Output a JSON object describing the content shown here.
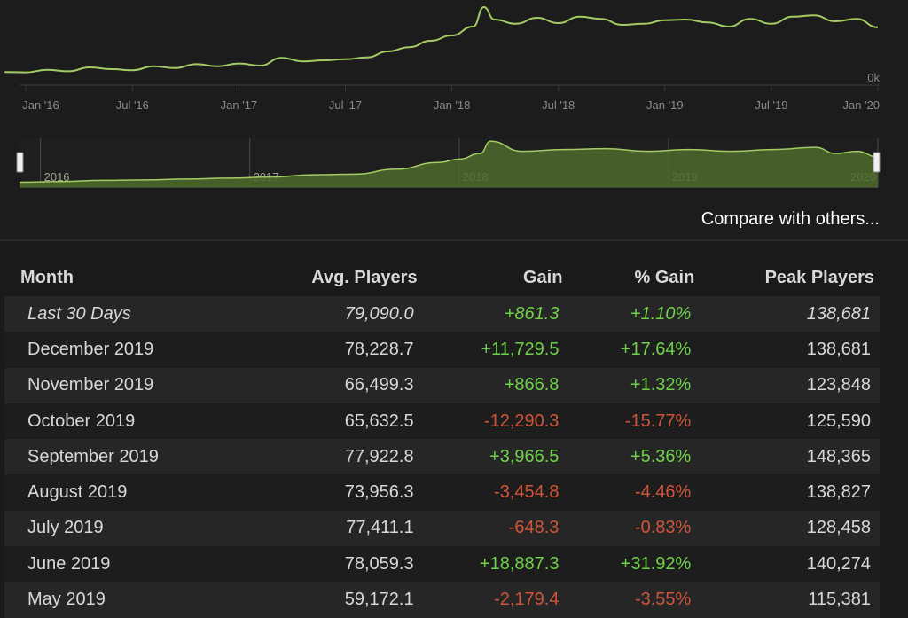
{
  "colors": {
    "line": "#a4cc64",
    "nav_fill": "#4e6a2c",
    "positive": "#6fd14a",
    "negative": "#d0543a"
  },
  "chart_data": [
    {
      "type": "line",
      "x_ticks": [
        "Jan '16",
        "Jul '16",
        "Jan '17",
        "Jul '17",
        "Jan '18",
        "Jul '18",
        "Jan '19",
        "Jul '19",
        "Jan '20"
      ],
      "y_ticks": [
        "0k"
      ],
      "ylim": [
        0,
        220000
      ],
      "grid": false,
      "series": [
        {
          "x": [
            2015.9,
            2016.0,
            2016.1,
            2016.2,
            2016.3,
            2016.4,
            2016.5,
            2016.6,
            2016.7,
            2016.8,
            2016.9,
            2017.0,
            2017.1,
            2017.2,
            2017.3,
            2017.4,
            2017.5,
            2017.6,
            2017.7,
            2017.8,
            2017.9,
            2018.0,
            2018.1,
            2018.15,
            2018.2,
            2018.3,
            2018.4,
            2018.5,
            2018.6,
            2018.7,
            2018.8,
            2018.9,
            2019.0,
            2019.1,
            2019.2,
            2019.3,
            2019.4,
            2019.5,
            2019.6,
            2019.7,
            2019.8,
            2019.9,
            2020.0
          ],
          "y": [
            22000,
            21000,
            28000,
            24000,
            35000,
            30000,
            27000,
            38000,
            33000,
            44000,
            38000,
            46000,
            40000,
            62000,
            52000,
            55000,
            58000,
            63000,
            80000,
            92000,
            110000,
            125000,
            150000,
            205000,
            170000,
            158000,
            175000,
            160000,
            178000,
            172000,
            155000,
            158000,
            168000,
            170000,
            162000,
            150000,
            172000,
            158000,
            178000,
            182000,
            165000,
            172000,
            148000
          ]
        }
      ]
    },
    {
      "type": "area",
      "x_ticks": [
        "2016",
        "2017",
        "2018",
        "2019",
        "2020"
      ],
      "series": [
        {
          "x": [
            2015.9,
            2016.1,
            2016.3,
            2016.5,
            2016.7,
            2016.9,
            2017.1,
            2017.3,
            2017.5,
            2017.7,
            2017.9,
            2018.0,
            2018.1,
            2018.15,
            2018.3,
            2018.5,
            2018.7,
            2018.9,
            2019.1,
            2019.3,
            2019.5,
            2019.7,
            2019.8,
            2019.9,
            2020.0
          ],
          "y": [
            22000,
            25000,
            30000,
            32000,
            36000,
            40000,
            45000,
            55000,
            58000,
            80000,
            110000,
            125000,
            150000,
            205000,
            160000,
            168000,
            172000,
            160000,
            168000,
            160000,
            168000,
            178000,
            150000,
            160000,
            135000
          ]
        }
      ]
    },
    {
      "type": "table",
      "headers": [
        "Month",
        "Avg. Players",
        "Gain",
        "% Gain",
        "Peak Players"
      ],
      "rows": [
        {
          "month": "Last 30 Days",
          "avg": "79,090.0",
          "gain": "+861.3",
          "pct": "+1.10%",
          "peak": "138,681",
          "sign": "pos",
          "italic": true
        },
        {
          "month": "December 2019",
          "avg": "78,228.7",
          "gain": "+11,729.5",
          "pct": "+17.64%",
          "peak": "138,681",
          "sign": "pos"
        },
        {
          "month": "November 2019",
          "avg": "66,499.3",
          "gain": "+866.8",
          "pct": "+1.32%",
          "peak": "123,848",
          "sign": "pos"
        },
        {
          "month": "October 2019",
          "avg": "65,632.5",
          "gain": "-12,290.3",
          "pct": "-15.77%",
          "peak": "125,590",
          "sign": "neg"
        },
        {
          "month": "September 2019",
          "avg": "77,922.8",
          "gain": "+3,966.5",
          "pct": "+5.36%",
          "peak": "148,365",
          "sign": "pos"
        },
        {
          "month": "August 2019",
          "avg": "73,956.3",
          "gain": "-3,454.8",
          "pct": "-4.46%",
          "peak": "138,827",
          "sign": "neg"
        },
        {
          "month": "July 2019",
          "avg": "77,411.1",
          "gain": "-648.3",
          "pct": "-0.83%",
          "peak": "128,458",
          "sign": "neg"
        },
        {
          "month": "June 2019",
          "avg": "78,059.3",
          "gain": "+18,887.3",
          "pct": "+31.92%",
          "peak": "140,274",
          "sign": "pos"
        },
        {
          "month": "May 2019",
          "avg": "59,172.1",
          "gain": "-2,179.4",
          "pct": "-3.55%",
          "peak": "115,381",
          "sign": "neg"
        }
      ]
    }
  ],
  "compare_link": "Compare with others..."
}
